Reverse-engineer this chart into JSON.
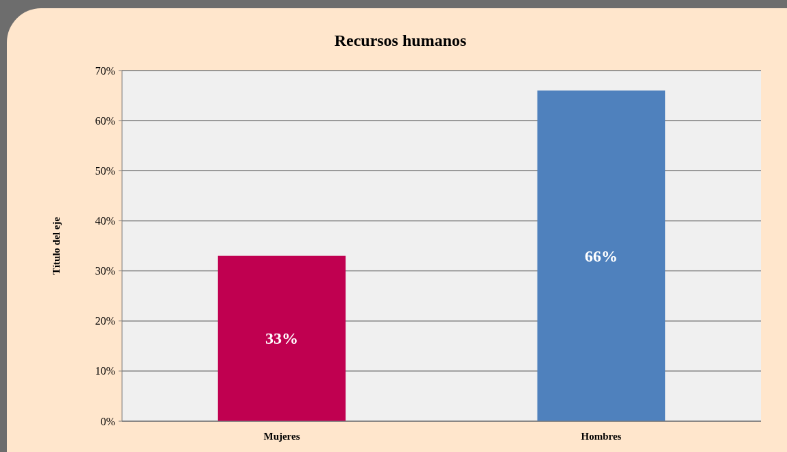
{
  "chart_data": {
    "type": "bar",
    "title": "Recursos humanos",
    "ylabel": "Título del eje",
    "categories": [
      "Mujeres",
      "Hombres"
    ],
    "values": [
      33,
      66
    ],
    "colors": [
      "#c00050",
      "#4f81bd"
    ],
    "value_labels": [
      "33%",
      "66%"
    ],
    "ylim": [
      0,
      70
    ],
    "yticks": [
      {
        "value": 0,
        "label": "0%"
      },
      {
        "value": 10,
        "label": "10%"
      },
      {
        "value": 20,
        "label": "20%"
      },
      {
        "value": 30,
        "label": "30%"
      },
      {
        "value": 40,
        "label": "40%"
      },
      {
        "value": 50,
        "label": "50%"
      },
      {
        "value": 60,
        "label": "60%"
      },
      {
        "value": 70,
        "label": "70%"
      }
    ],
    "grid": "y"
  }
}
